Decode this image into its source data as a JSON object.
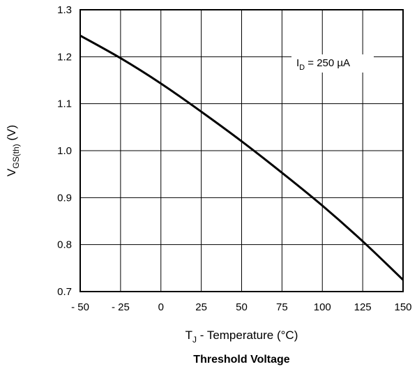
{
  "chart_data": {
    "type": "line",
    "title": "Threshold Voltage",
    "xlabel": {
      "main": "T",
      "sub": "J",
      "rest": " - Temperature (°C)"
    },
    "ylabel": {
      "main": "V",
      "sub": "GS(th)",
      "rest": " (V)"
    },
    "xlim": [
      -50,
      150
    ],
    "ylim": [
      0.7,
      1.3
    ],
    "grid": true,
    "x_ticks": [
      -50,
      -25,
      0,
      25,
      50,
      75,
      100,
      125,
      150
    ],
    "x_tick_labels": [
      "- 50",
      "- 25",
      "0",
      "25",
      "50",
      "75",
      "100",
      "125",
      "150"
    ],
    "y_ticks": [
      0.7,
      0.8,
      0.9,
      1.0,
      1.1,
      1.2,
      1.3
    ],
    "y_tick_labels": [
      "0.7",
      "0.8",
      "0.9",
      "1.0",
      "1.1",
      "1.2",
      "1.3"
    ],
    "annotation": {
      "main": "I",
      "sub": "D",
      "rest": " = 250  µA"
    },
    "series": [
      {
        "x": [
          -50,
          -25,
          0,
          25,
          50,
          75,
          100,
          125,
          150
        ],
        "y": [
          1.245,
          1.197,
          1.143,
          1.083,
          1.02,
          0.953,
          0.883,
          0.807,
          0.725
        ]
      }
    ]
  }
}
